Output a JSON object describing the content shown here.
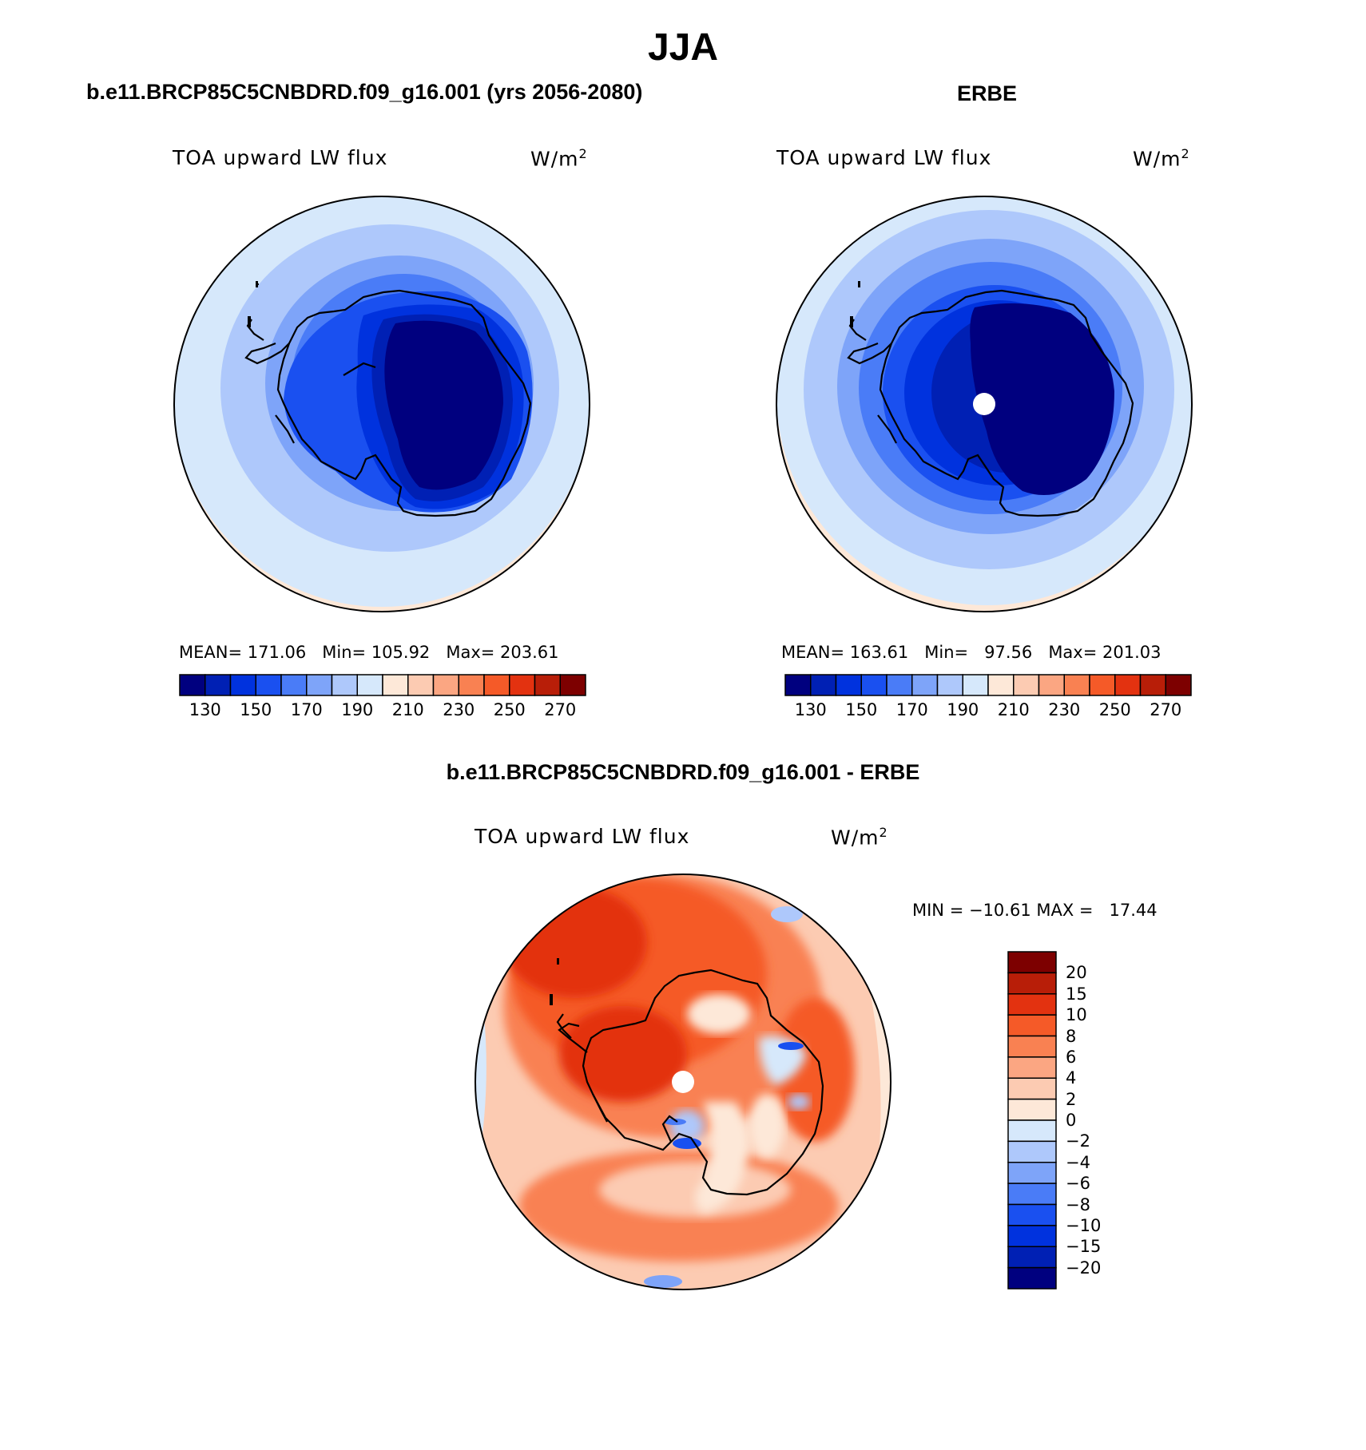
{
  "title": "JJA",
  "left_panel": {
    "header": "b.e11.BRCP85C5CNBDRD.f09_g16.001 (yrs 2056-2080)",
    "variable": "TOA upward LW flux",
    "units": "W/m",
    "units_exp": "2",
    "stats": {
      "mean_label": "MEAN=",
      "mean": "171.06",
      "min_label": "Min=",
      "min": "105.92",
      "max_label": "Max=",
      "max": "203.61"
    }
  },
  "right_panel": {
    "header": "ERBE",
    "variable": "TOA upward LW flux",
    "units": "W/m",
    "units_exp": "2",
    "stats": {
      "mean_label": "MEAN=",
      "mean": "163.61",
      "min_label": "Min=",
      "min": "97.56",
      "max_label": "Max=",
      "max": "201.03"
    }
  },
  "diff_panel": {
    "header": "b.e11.BRCP85C5CNBDRD.f09_g16.001 - ERBE",
    "variable": "TOA upward LW flux",
    "units": "W/m",
    "units_exp": "2",
    "minmax": "MIN = −10.61 MAX =   17.44"
  },
  "abs_colorbar": {
    "ticks": [
      "130",
      "150",
      "170",
      "190",
      "210",
      "230",
      "250",
      "270"
    ],
    "colors": [
      "#00007f",
      "#0020b4",
      "#0032de",
      "#1a50f0",
      "#4a7cf7",
      "#7ea4f9",
      "#aec8fb",
      "#d6e8fb",
      "#fde8d8",
      "#fccbb2",
      "#fba682",
      "#f98152",
      "#f55a28",
      "#e33210",
      "#b81e08",
      "#7d0000"
    ]
  },
  "diff_colorbar": {
    "ticks": [
      "20",
      "15",
      "10",
      "8",
      "6",
      "4",
      "2",
      "0",
      "−2",
      "−4",
      "−6",
      "−8",
      "−10",
      "−15",
      "−20"
    ],
    "colors": [
      "#7d0000",
      "#b81e08",
      "#e33210",
      "#f55a28",
      "#f98152",
      "#fba682",
      "#fccbb2",
      "#fde8d8",
      "#d6e8fb",
      "#aec8fb",
      "#7ea4f9",
      "#4a7cf7",
      "#1a50f0",
      "#0032de",
      "#0020b4",
      "#00007f"
    ]
  }
}
